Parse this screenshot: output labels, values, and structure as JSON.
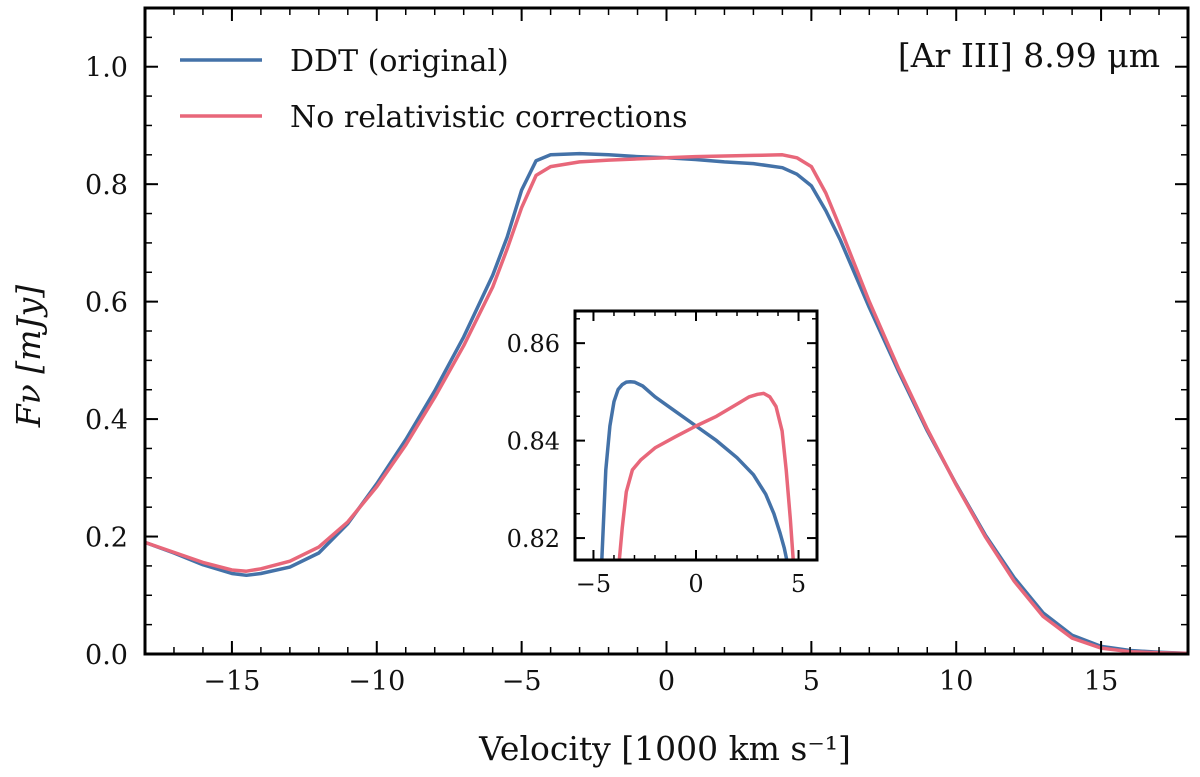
{
  "chart_data": [
    {
      "id": "main",
      "type": "line",
      "xlabel": "Velocity [1000 km s⁻¹]",
      "ylabel": "Fν [mJy]",
      "xlim": [
        -18,
        18
      ],
      "ylim": [
        0,
        1.1
      ],
      "x_ticks": [
        -15,
        -10,
        -5,
        0,
        5,
        10,
        15
      ],
      "x_tick_labels": [
        "−15",
        "−10",
        "−5",
        "0",
        "5",
        "10",
        "15"
      ],
      "y_ticks": [
        0.0,
        0.2,
        0.4,
        0.6,
        0.8,
        1.0
      ],
      "y_tick_labels": [
        "0.0",
        "0.2",
        "0.4",
        "0.6",
        "0.8",
        "1.0"
      ],
      "annotation": "[Ar III] 8.99 μm",
      "legend_position": "top-left",
      "series": [
        {
          "name": "DDT (original)",
          "color": "#4472a8",
          "x": [
            -18,
            -17,
            -16,
            -15,
            -14.5,
            -14,
            -13,
            -12,
            -11,
            -10,
            -9,
            -8,
            -7,
            -6,
            -5.5,
            -5,
            -4.5,
            -4,
            -3,
            -2,
            -1,
            0,
            1,
            2,
            3,
            4,
            4.5,
            5,
            5.5,
            6,
            7,
            8,
            9,
            10,
            11,
            12,
            13,
            14,
            15,
            16,
            17,
            18
          ],
          "y": [
            0.19,
            0.172,
            0.152,
            0.137,
            0.134,
            0.137,
            0.148,
            0.172,
            0.222,
            0.29,
            0.365,
            0.448,
            0.54,
            0.645,
            0.71,
            0.79,
            0.84,
            0.85,
            0.852,
            0.85,
            0.847,
            0.845,
            0.842,
            0.838,
            0.835,
            0.828,
            0.817,
            0.797,
            0.755,
            0.705,
            0.59,
            0.482,
            0.38,
            0.289,
            0.203,
            0.13,
            0.07,
            0.032,
            0.013,
            0.006,
            0.003,
            0.001
          ]
        },
        {
          "name": "No relativistic corrections",
          "color": "#e8677a",
          "x": [
            -18,
            -17,
            -16,
            -15,
            -14.5,
            -14,
            -13,
            -12,
            -11,
            -10,
            -9,
            -8,
            -7,
            -6,
            -5.5,
            -5,
            -4.5,
            -4,
            -3,
            -2,
            -1,
            0,
            1,
            2,
            3,
            4,
            4.5,
            5,
            5.5,
            6,
            7,
            8,
            9,
            10,
            11,
            12,
            13,
            14,
            15,
            16,
            17,
            18
          ],
          "y": [
            0.19,
            0.173,
            0.156,
            0.143,
            0.141,
            0.145,
            0.158,
            0.182,
            0.225,
            0.285,
            0.356,
            0.437,
            0.525,
            0.625,
            0.69,
            0.76,
            0.815,
            0.83,
            0.838,
            0.841,
            0.843,
            0.845,
            0.847,
            0.848,
            0.849,
            0.85,
            0.845,
            0.83,
            0.785,
            0.725,
            0.6,
            0.487,
            0.383,
            0.288,
            0.2,
            0.124,
            0.064,
            0.027,
            0.01,
            0.004,
            0.002,
            0.001
          ]
        }
      ]
    },
    {
      "id": "inset",
      "type": "line",
      "xlim": [
        -5.9,
        5.9
      ],
      "ylim": [
        0.8155,
        0.8666
      ],
      "x_ticks": [
        -5,
        0,
        5
      ],
      "x_tick_labels": [
        "−5",
        "0",
        "5"
      ],
      "y_ticks": [
        0.82,
        0.84,
        0.86
      ],
      "y_tick_labels": [
        "0.82",
        "0.84",
        "0.86"
      ],
      "series": [
        {
          "name": "DDT (original)",
          "color": "#4472a8",
          "x": [
            -4.6,
            -4.4,
            -4.2,
            -4.0,
            -3.8,
            -3.6,
            -3.4,
            -3.2,
            -3.0,
            -2.6,
            -2.0,
            -1.0,
            0,
            1.0,
            2.0,
            2.8,
            3.4,
            3.8,
            4.1,
            4.3,
            4.45
          ],
          "y": [
            0.815,
            0.834,
            0.843,
            0.848,
            0.8505,
            0.8515,
            0.852,
            0.8521,
            0.852,
            0.8512,
            0.849,
            0.846,
            0.843,
            0.84,
            0.8365,
            0.833,
            0.829,
            0.825,
            0.821,
            0.818,
            0.815
          ]
        },
        {
          "name": "No relativistic corrections",
          "color": "#e8677a",
          "x": [
            -3.75,
            -3.6,
            -3.4,
            -3.1,
            -2.7,
            -2.0,
            -1.0,
            0,
            1.0,
            2.0,
            2.6,
            3.0,
            3.3,
            3.6,
            3.9,
            4.2,
            4.4,
            4.6,
            4.75
          ],
          "y": [
            0.815,
            0.822,
            0.8295,
            0.834,
            0.836,
            0.8385,
            0.8408,
            0.843,
            0.845,
            0.8475,
            0.849,
            0.8495,
            0.8497,
            0.849,
            0.847,
            0.842,
            0.834,
            0.824,
            0.815
          ]
        }
      ]
    }
  ]
}
